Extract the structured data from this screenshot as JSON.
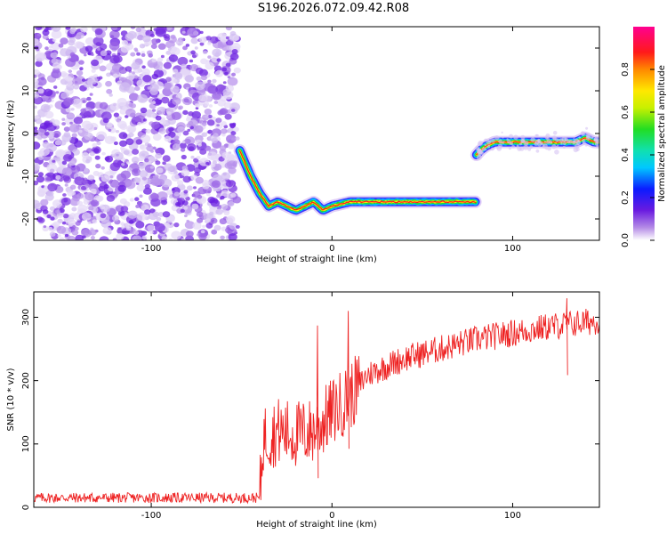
{
  "title": "S196.2026.072.09.42.R08",
  "chart_data": [
    {
      "type": "heatmap",
      "xlabel": "Height of straight line (km)",
      "ylabel": "Frequency (Hz)",
      "xlim": [
        -165,
        148
      ],
      "ylim": [
        -25,
        25
      ],
      "x_ticks": [
        "-100",
        "0",
        "100"
      ],
      "y_ticks": [
        "20",
        "10",
        "0",
        "-10",
        "-20"
      ],
      "noise_region_x": [
        -165,
        -52
      ],
      "trace_segments": [
        {
          "x": [
            -51,
            -48,
            -45,
            -40,
            -35,
            -30,
            -25,
            -20,
            -15,
            -10,
            -5,
            0,
            10,
            20,
            30,
            40,
            50,
            60,
            70,
            80
          ],
          "y": [
            -4,
            -7,
            -10,
            -14,
            -17,
            -16,
            -17,
            -18,
            -17,
            -16,
            -18,
            -17,
            -16,
            -16,
            -16,
            -16,
            -16,
            -16,
            -16,
            -16
          ]
        },
        {
          "x": [
            80,
            82,
            85,
            90,
            95,
            100,
            105,
            110,
            115,
            120,
            125,
            130,
            135,
            140,
            145,
            148
          ],
          "y": [
            -5,
            -4,
            -3,
            -2,
            -2,
            -2,
            -2,
            -2,
            -2,
            -2,
            -2,
            -2,
            -2,
            -1,
            -2,
            -2
          ]
        }
      ],
      "colorbar": {
        "label": "Normalized spectral amplitude",
        "range": [
          0,
          1
        ],
        "ticks": [
          "0.0",
          "0.2",
          "0.4",
          "0.6",
          "0.8"
        ]
      }
    },
    {
      "type": "line",
      "xlabel": "Height of straight line (km)",
      "ylabel": "SNR (10 * v/v)",
      "xlim": [
        -165,
        148
      ],
      "ylim": [
        0,
        340
      ],
      "x_ticks": [
        "-100",
        "0",
        "100"
      ],
      "y_ticks": [
        "0",
        "100",
        "200",
        "300"
      ],
      "series": [
        {
          "name": "SNR",
          "color": "#ee2222",
          "x": [
            -165,
            -140,
            -100,
            -60,
            -40,
            -38,
            -30,
            -20,
            -10,
            0,
            10,
            20,
            40,
            60,
            80,
            100,
            120,
            148
          ],
          "y": [
            15,
            15,
            15,
            15,
            15,
            110,
            120,
            115,
            120,
            150,
            175,
            210,
            235,
            250,
            265,
            275,
            285,
            295
          ]
        }
      ],
      "spikes": [
        {
          "x": -8,
          "y": 287
        },
        {
          "x": 9,
          "y": 310
        },
        {
          "x": 130,
          "y": 330
        }
      ]
    }
  ]
}
